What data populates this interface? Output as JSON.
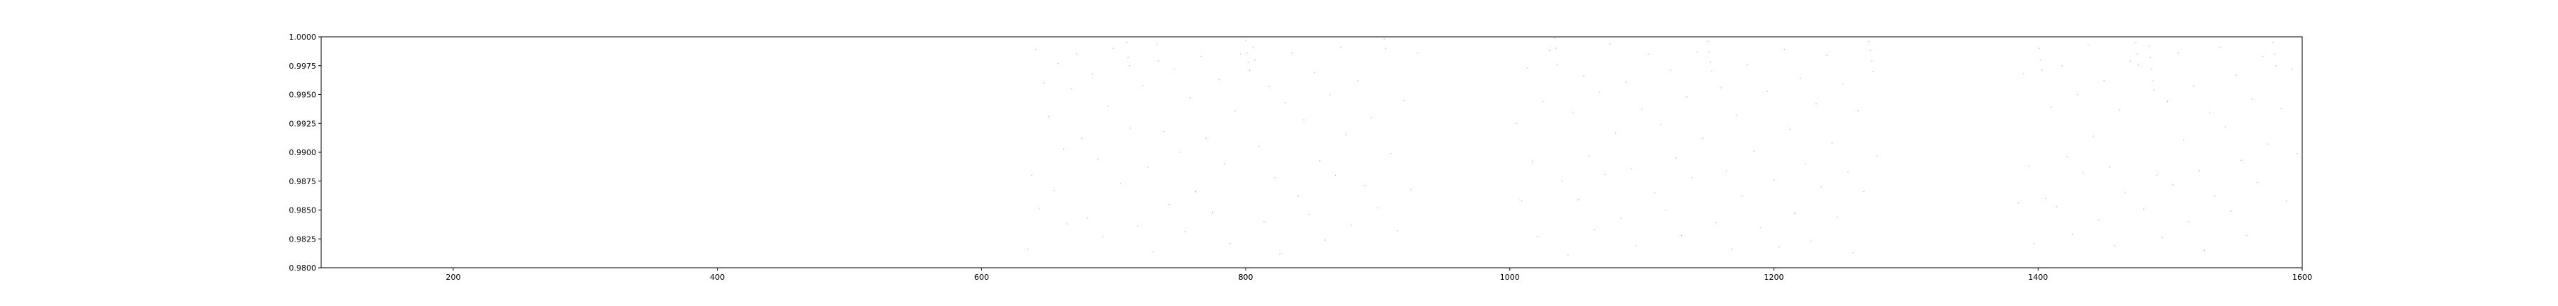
{
  "chart_data": {
    "type": "scatter",
    "title": "",
    "xlabel": "",
    "ylabel": "",
    "xlim": [
      100,
      1600
    ],
    "ylim": [
      0.98,
      1.0
    ],
    "xticks": [
      {
        "value": 200,
        "label": "200"
      },
      {
        "value": 400,
        "label": "400"
      },
      {
        "value": 600,
        "label": "600"
      },
      {
        "value": 800,
        "label": "800"
      },
      {
        "value": 1000,
        "label": "1000"
      },
      {
        "value": 1200,
        "label": "1200"
      },
      {
        "value": 1400,
        "label": "1400"
      },
      {
        "value": 1600,
        "label": "1600"
      }
    ],
    "yticks": [
      {
        "value": 0.98,
        "label": "0.9800"
      },
      {
        "value": 0.9825,
        "label": "0.9825"
      },
      {
        "value": 0.985,
        "label": "0.9850"
      },
      {
        "value": 0.9875,
        "label": "0.9875"
      },
      {
        "value": 0.99,
        "label": "0.9900"
      },
      {
        "value": 0.9925,
        "label": "0.9925"
      },
      {
        "value": 0.995,
        "label": "0.9950"
      },
      {
        "value": 0.9975,
        "label": "0.9975"
      },
      {
        "value": 1.0,
        "label": "1.0000"
      }
    ],
    "grid": false,
    "marker_color": "#1f77b4",
    "series": [
      {
        "points": [
          [
            635,
            0.9816
          ],
          [
            638,
            0.988
          ],
          [
            641,
            0.9989
          ],
          [
            644,
            0.9851
          ],
          [
            647,
            0.996
          ],
          [
            651,
            0.9931
          ],
          [
            655,
            0.9867
          ],
          [
            658,
            0.9977
          ],
          [
            662,
            0.9903
          ],
          [
            665,
            0.9838
          ],
          [
            668,
            0.9955
          ],
          [
            672,
            0.9985
          ],
          [
            676,
            0.9912
          ],
          [
            680,
            0.9843
          ],
          [
            684,
            0.9968
          ],
          [
            688,
            0.9894
          ],
          [
            692,
            0.9827
          ],
          [
            696,
            0.994
          ],
          [
            700,
            0.999
          ],
          [
            705,
            0.9873
          ],
          [
            710,
            0.9995
          ],
          [
            711,
            0.9982
          ],
          [
            712,
            0.9975
          ],
          [
            713,
            0.9921
          ],
          [
            718,
            0.9836
          ],
          [
            722,
            0.9958
          ],
          [
            726,
            0.9887
          ],
          [
            730,
            0.9814
          ],
          [
            733,
            0.9993
          ],
          [
            734,
            0.9979
          ],
          [
            738,
            0.9918
          ],
          [
            742,
            0.9855
          ],
          [
            746,
            0.9972
          ],
          [
            750,
            0.99
          ],
          [
            754,
            0.9831
          ],
          [
            758,
            0.9947
          ],
          [
            762,
            0.9866
          ],
          [
            766,
            0.9983
          ],
          [
            770,
            0.9912
          ],
          [
            775,
            0.9848
          ],
          [
            780,
            0.9963
          ],
          [
            784,
            0.989
          ],
          [
            788,
            0.9821
          ],
          [
            792,
            0.9936
          ],
          [
            796,
            0.9985
          ],
          [
            800,
            0.9997
          ],
          [
            801,
            0.9986
          ],
          [
            802,
            0.9978
          ],
          [
            803,
            0.9971
          ],
          [
            806,
            0.9991
          ],
          [
            807,
            0.998
          ],
          [
            810,
            0.9905
          ],
          [
            814,
            0.984
          ],
          [
            818,
            0.9957
          ],
          [
            822,
            0.9878
          ],
          [
            826,
            0.9812
          ],
          [
            830,
            0.9943
          ],
          [
            835,
            0.9986
          ],
          [
            840,
            0.9862
          ],
          [
            844,
            0.9928
          ],
          [
            848,
            0.9846
          ],
          [
            852,
            0.9969
          ],
          [
            856,
            0.9893
          ],
          [
            860,
            0.9824
          ],
          [
            864,
            0.995
          ],
          [
            868,
            0.988
          ],
          [
            872,
            0.9991
          ],
          [
            876,
            0.9915
          ],
          [
            880,
            0.9837
          ],
          [
            885,
            0.9962
          ],
          [
            890,
            0.9871
          ],
          [
            895,
            0.993
          ],
          [
            900,
            0.9852
          ],
          [
            905,
            0.9998
          ],
          [
            906,
            0.999
          ],
          [
            910,
            0.9899
          ],
          [
            915,
            0.9832
          ],
          [
            920,
            0.9945
          ],
          [
            925,
            0.9868
          ],
          [
            930,
            0.9986
          ]
        ]
      },
      {
        "points": [
          [
            1005,
            0.9925
          ],
          [
            1009,
            0.9858
          ],
          [
            1013,
            0.9973
          ],
          [
            1017,
            0.9892
          ],
          [
            1021,
            0.9827
          ],
          [
            1025,
            0.9944
          ],
          [
            1030,
            0.9988
          ],
          [
            1034,
            0.9999
          ],
          [
            1035,
            0.999
          ],
          [
            1036,
            0.9976
          ],
          [
            1040,
            0.9875
          ],
          [
            1044,
            0.9811
          ],
          [
            1048,
            0.9934
          ],
          [
            1052,
            0.9859
          ],
          [
            1056,
            0.9966
          ],
          [
            1060,
            0.9897
          ],
          [
            1064,
            0.9833
          ],
          [
            1068,
            0.9952
          ],
          [
            1072,
            0.9881
          ],
          [
            1076,
            0.9994
          ],
          [
            1080,
            0.9917
          ],
          [
            1084,
            0.9843
          ],
          [
            1088,
            0.9961
          ],
          [
            1092,
            0.9886
          ],
          [
            1096,
            0.9819
          ],
          [
            1100,
            0.9938
          ],
          [
            1105,
            0.9985
          ],
          [
            1110,
            0.9865
          ],
          [
            1114,
            0.9924
          ],
          [
            1118,
            0.985
          ],
          [
            1122,
            0.9971
          ],
          [
            1126,
            0.9895
          ],
          [
            1130,
            0.9828
          ],
          [
            1134,
            0.9948
          ],
          [
            1138,
            0.9878
          ],
          [
            1142,
            0.9987
          ],
          [
            1146,
            0.9912
          ],
          [
            1150,
            0.9996
          ],
          [
            1151,
            0.9987
          ],
          [
            1152,
            0.9978
          ],
          [
            1153,
            0.997
          ],
          [
            1156,
            0.9839
          ],
          [
            1160,
            0.9956
          ],
          [
            1164,
            0.9884
          ],
          [
            1168,
            0.9816
          ],
          [
            1172,
            0.9932
          ],
          [
            1176,
            0.9862
          ],
          [
            1180,
            0.9976
          ],
          [
            1185,
            0.9901
          ],
          [
            1190,
            0.9835
          ],
          [
            1195,
            0.9953
          ],
          [
            1200,
            0.9876
          ],
          [
            1204,
            0.9818
          ],
          [
            1208,
            0.9989
          ],
          [
            1212,
            0.992
          ],
          [
            1216,
            0.9847
          ],
          [
            1220,
            0.9964
          ],
          [
            1224,
            0.989
          ],
          [
            1228,
            0.9823
          ],
          [
            1232,
            0.9942
          ],
          [
            1236,
            0.987
          ],
          [
            1240,
            0.9984
          ],
          [
            1244,
            0.9908
          ],
          [
            1248,
            0.9844
          ],
          [
            1252,
            0.9959
          ],
          [
            1256,
            0.9883
          ],
          [
            1260,
            0.9813
          ],
          [
            1264,
            0.9936
          ],
          [
            1268,
            0.9866
          ],
          [
            1272,
            0.9996
          ],
          [
            1273,
            0.9988
          ],
          [
            1274,
            0.9979
          ],
          [
            1275,
            0.997
          ],
          [
            1278,
            0.9897
          ]
        ]
      },
      {
        "points": [
          [
            1385,
            0.9856
          ],
          [
            1389,
            0.9968
          ],
          [
            1393,
            0.9888
          ],
          [
            1397,
            0.9821
          ],
          [
            1401,
            0.999
          ],
          [
            1402,
            0.998
          ],
          [
            1403,
            0.9971
          ],
          [
            1406,
            0.986
          ],
          [
            1410,
            0.9939
          ],
          [
            1414,
            0.9853
          ],
          [
            1418,
            0.9975
          ],
          [
            1422,
            0.9896
          ],
          [
            1426,
            0.9829
          ],
          [
            1430,
            0.995
          ],
          [
            1434,
            0.9882
          ],
          [
            1438,
            0.9993
          ],
          [
            1442,
            0.9914
          ],
          [
            1446,
            0.9841
          ],
          [
            1450,
            0.9962
          ],
          [
            1454,
            0.9887
          ],
          [
            1458,
            0.9819
          ],
          [
            1462,
            0.9937
          ],
          [
            1466,
            0.9865
          ],
          [
            1470,
            0.9979
          ],
          [
            1474,
            0.9995
          ],
          [
            1475,
            0.9985
          ],
          [
            1476,
            0.9976
          ],
          [
            1480,
            0.9851
          ],
          [
            1484,
            0.9992
          ],
          [
            1485,
            0.9982
          ],
          [
            1486,
            0.9972
          ],
          [
            1487,
            0.9962
          ],
          [
            1488,
            0.9954
          ],
          [
            1490,
            0.988
          ],
          [
            1494,
            0.9826
          ],
          [
            1498,
            0.9944
          ],
          [
            1502,
            0.9872
          ],
          [
            1506,
            0.9986
          ],
          [
            1510,
            0.9911
          ],
          [
            1514,
            0.984
          ],
          [
            1518,
            0.9958
          ],
          [
            1522,
            0.9884
          ],
          [
            1526,
            0.9815
          ],
          [
            1530,
            0.9934
          ],
          [
            1534,
            0.9862
          ],
          [
            1538,
            0.9991
          ],
          [
            1542,
            0.9922
          ],
          [
            1546,
            0.9849
          ],
          [
            1550,
            0.9967
          ],
          [
            1554,
            0.9893
          ],
          [
            1558,
            0.9828
          ],
          [
            1562,
            0.9946
          ],
          [
            1566,
            0.9874
          ],
          [
            1570,
            0.9983
          ],
          [
            1574,
            0.9907
          ],
          [
            1578,
            0.9995
          ],
          [
            1579,
            0.9985
          ],
          [
            1580,
            0.9975
          ],
          [
            1584,
            0.9938
          ],
          [
            1588,
            0.9858
          ],
          [
            1592,
            0.9972
          ],
          [
            1596,
            0.9899
          ]
        ]
      }
    ]
  }
}
